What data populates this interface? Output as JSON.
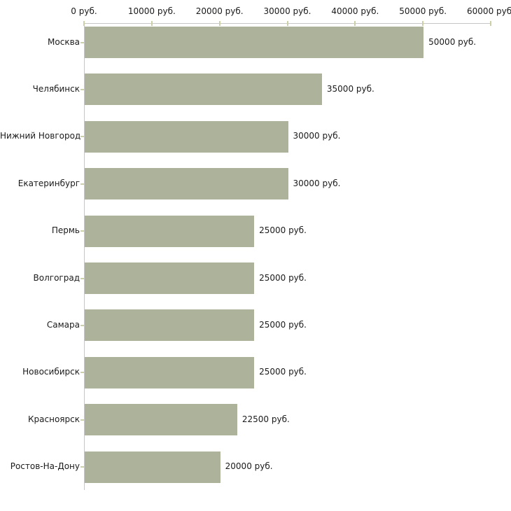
{
  "chart_data": {
    "type": "bar",
    "orientation": "horizontal",
    "categories": [
      "Москва",
      "Челябинск",
      "Нижний Новгород",
      "Екатеринбург",
      "Пермь",
      "Волгоград",
      "Самара",
      "Новосибирск",
      "Красноярск",
      "Ростов-На-Дону"
    ],
    "values": [
      50000,
      35000,
      30000,
      30000,
      25000,
      25000,
      25000,
      25000,
      22500,
      20000
    ],
    "bar_labels": [
      "50000 руб.",
      "35000 руб.",
      "30000 руб.",
      "30000 руб.",
      "25000 руб.",
      "25000 руб.",
      "25000 руб.",
      "25000 руб.",
      "22500 руб.",
      "20000 руб."
    ],
    "x_ticks": [
      {
        "value": 0,
        "label": "0 руб."
      },
      {
        "value": 10000,
        "label": "10000 руб."
      },
      {
        "value": 20000,
        "label": "20000 руб."
      },
      {
        "value": 30000,
        "label": "30000 руб."
      },
      {
        "value": 40000,
        "label": "40000 руб."
      },
      {
        "value": 50000,
        "label": "50000 руб."
      },
      {
        "value": 60000,
        "label": "60000 руб."
      }
    ],
    "xlim": [
      0,
      60000
    ],
    "grid": false,
    "legend": null,
    "colors": {
      "bar": "#adb29a",
      "axis": "#c6c6c6",
      "tick": "#cdd0a6",
      "text": "#1a1a1a",
      "background": "#ffffff"
    }
  }
}
